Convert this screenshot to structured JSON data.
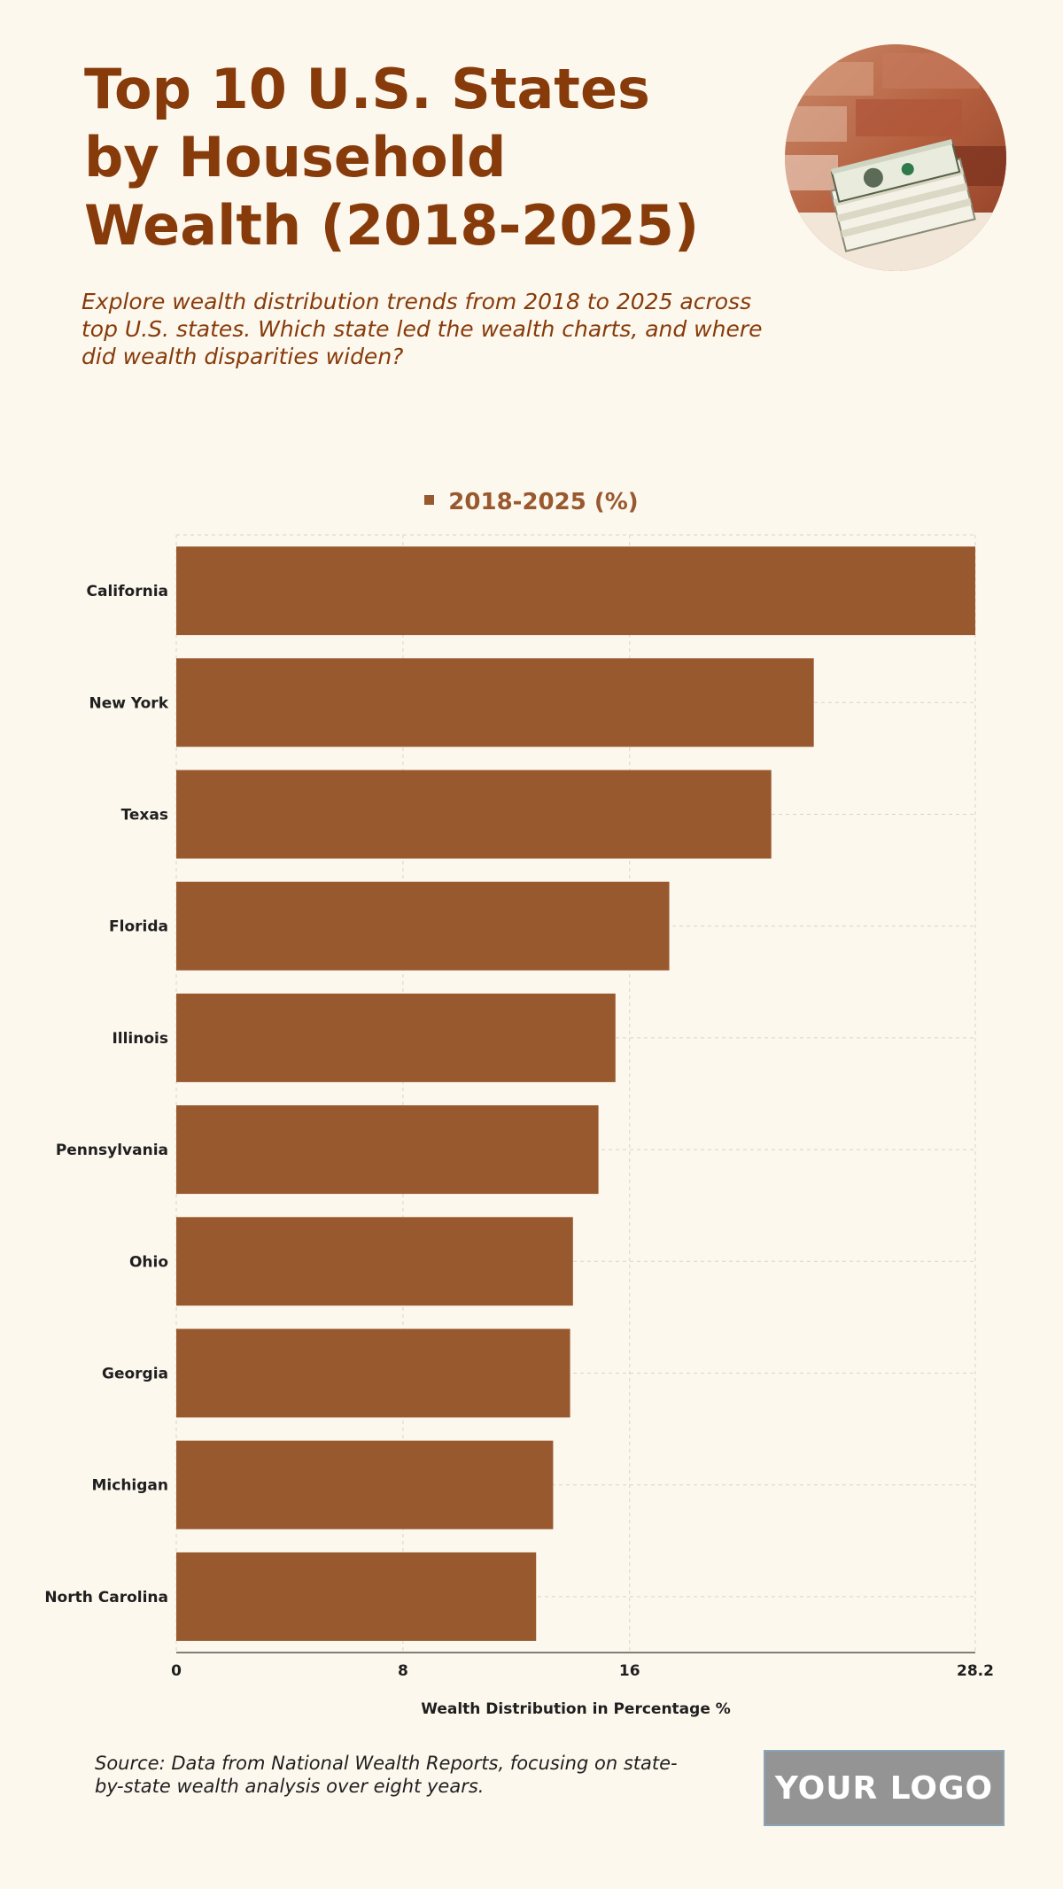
{
  "header": {
    "title": "Top 10 U.S. States by Household Wealth (2018-2025)",
    "subtitle": "Explore wealth distribution trends from 2018 to 2025 across top U.S. states. Which state led the wealth charts, and where did wealth disparities widen?"
  },
  "colors": {
    "bar": "#99592f",
    "title": "#873b0b",
    "background": "#fdf8ee"
  },
  "chart_data": {
    "type": "bar",
    "orientation": "horizontal",
    "legend": "2018-2025 (%)",
    "legend_position": "top-center",
    "categories": [
      "California",
      "New York",
      "Texas",
      "Florida",
      "Illinois",
      "Pennsylvania",
      "Ohio",
      "Georgia",
      "Michigan",
      "North Carolina"
    ],
    "series": [
      {
        "name": "2018-2025 (%)",
        "values": [
          28.2,
          22.5,
          21.0,
          17.4,
          15.5,
          14.9,
          14.0,
          13.9,
          13.3,
          12.7
        ]
      }
    ],
    "xlabel": "Wealth Distribution in Percentage %",
    "xticks": [
      0,
      8,
      16,
      28.2
    ],
    "xlim": [
      0,
      28.2
    ],
    "grid": true
  },
  "footer": {
    "source": "Source: Data from National Wealth Reports, focusing on state-by-state wealth analysis over eight years.",
    "logo_text": "YOUR LOGO"
  }
}
